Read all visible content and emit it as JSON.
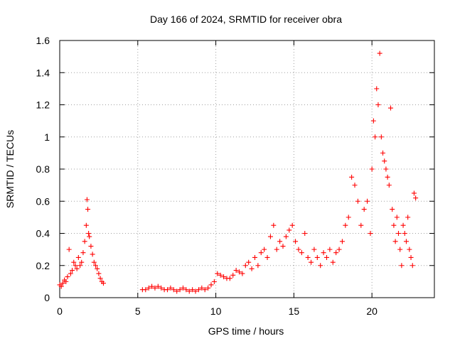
{
  "chart_data": {
    "type": "scatter",
    "title": "Day 166 of 2024, SRMTID for receiver obra",
    "xlabel": "GPS time / hours",
    "ylabel": "SRMTID / TECUs",
    "xlim": [
      0,
      24
    ],
    "ylim": [
      0,
      1.6
    ],
    "xticks": [
      0,
      5,
      10,
      15,
      20
    ],
    "xtick_labels": [
      "0",
      "5",
      "10",
      "15",
      "20"
    ],
    "yticks": [
      0,
      0.2,
      0.4,
      0.6,
      0.8,
      1,
      1.2,
      1.4,
      1.6
    ],
    "ytick_labels": [
      "0",
      "0.2",
      "0.4",
      "0.6",
      "0.8",
      "1",
      "1.2",
      "1.4",
      "1.6"
    ],
    "grid": true,
    "marker": "+",
    "marker_color": "#ff0000",
    "series": [
      {
        "name": "SRMTID",
        "x": [
          0.0,
          0.1,
          0.2,
          0.3,
          0.4,
          0.5,
          0.6,
          0.7,
          0.8,
          0.9,
          1.0,
          1.1,
          1.2,
          1.3,
          1.4,
          1.5,
          1.6,
          1.7,
          1.75,
          1.8,
          1.85,
          1.9,
          2.0,
          2.1,
          2.2,
          2.3,
          2.4,
          2.5,
          2.6,
          2.7,
          2.8,
          5.3,
          5.5,
          5.7,
          5.9,
          6.1,
          6.3,
          6.5,
          6.7,
          6.9,
          7.1,
          7.3,
          7.5,
          7.7,
          7.9,
          8.1,
          8.3,
          8.5,
          8.7,
          8.9,
          9.1,
          9.3,
          9.5,
          9.7,
          9.9,
          10.1,
          10.3,
          10.5,
          10.7,
          10.9,
          11.1,
          11.3,
          11.5,
          11.7,
          11.9,
          12.1,
          12.3,
          12.5,
          12.7,
          12.9,
          13.1,
          13.3,
          13.5,
          13.7,
          13.9,
          14.1,
          14.3,
          14.5,
          14.7,
          14.9,
          15.1,
          15.3,
          15.5,
          15.7,
          15.9,
          16.1,
          16.3,
          16.5,
          16.7,
          16.9,
          17.1,
          17.3,
          17.5,
          17.7,
          17.9,
          18.1,
          18.3,
          18.5,
          18.7,
          18.9,
          19.1,
          19.3,
          19.5,
          19.7,
          19.9,
          20.0,
          20.1,
          20.2,
          20.3,
          20.4,
          20.5,
          20.6,
          20.7,
          20.8,
          20.9,
          21.0,
          21.1,
          21.2,
          21.3,
          21.4,
          21.5,
          21.6,
          21.7,
          21.8,
          21.9,
          22.0,
          22.1,
          22.2,
          22.3,
          22.4,
          22.5,
          22.6,
          22.7,
          22.8
        ],
        "y": [
          0.08,
          0.07,
          0.09,
          0.11,
          0.1,
          0.13,
          0.3,
          0.15,
          0.17,
          0.22,
          0.2,
          0.18,
          0.25,
          0.2,
          0.22,
          0.28,
          0.35,
          0.45,
          0.61,
          0.55,
          0.4,
          0.38,
          0.32,
          0.27,
          0.22,
          0.2,
          0.18,
          0.15,
          0.12,
          0.1,
          0.09,
          0.05,
          0.05,
          0.06,
          0.07,
          0.06,
          0.07,
          0.06,
          0.05,
          0.05,
          0.06,
          0.05,
          0.04,
          0.05,
          0.06,
          0.05,
          0.04,
          0.05,
          0.04,
          0.05,
          0.06,
          0.05,
          0.06,
          0.08,
          0.1,
          0.15,
          0.14,
          0.13,
          0.12,
          0.12,
          0.14,
          0.17,
          0.16,
          0.15,
          0.2,
          0.22,
          0.18,
          0.25,
          0.2,
          0.28,
          0.3,
          0.25,
          0.38,
          0.45,
          0.3,
          0.35,
          0.32,
          0.38,
          0.42,
          0.45,
          0.35,
          0.3,
          0.28,
          0.4,
          0.25,
          0.22,
          0.3,
          0.25,
          0.2,
          0.28,
          0.25,
          0.3,
          0.22,
          0.28,
          0.3,
          0.35,
          0.45,
          0.5,
          0.75,
          0.7,
          0.6,
          0.45,
          0.55,
          0.6,
          0.4,
          0.8,
          1.1,
          1.0,
          1.3,
          1.2,
          1.52,
          1.0,
          0.9,
          0.85,
          0.8,
          0.75,
          0.7,
          1.18,
          0.55,
          0.45,
          0.35,
          0.5,
          0.4,
          0.3,
          0.2,
          0.45,
          0.4,
          0.35,
          0.5,
          0.3,
          0.25,
          0.2,
          0.65,
          0.62
        ]
      }
    ]
  }
}
